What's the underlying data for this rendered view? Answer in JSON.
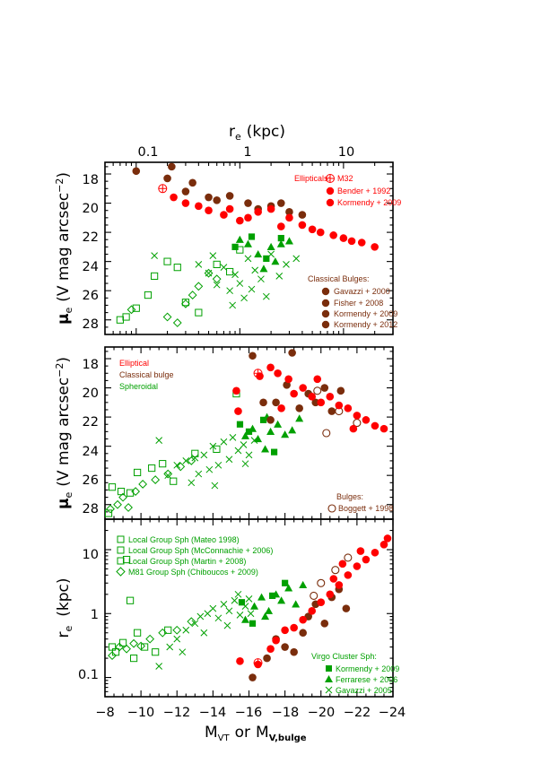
{
  "colors": {
    "elliptical": "#ff0000",
    "bulge": "#7a2d0c",
    "spheroidal": "#00a000",
    "axis": "#000000"
  },
  "axes": {
    "top_label_main": "r",
    "top_label_sub": "e",
    "top_label_unit": "(kpc)",
    "top_ticks": [
      "0.1",
      "1",
      "10"
    ],
    "mu_label_main": "μ",
    "mu_label_sub": "e",
    "mu_label_unit": "(V mag arcsec",
    "mu_label_exp": "−2",
    "mu_label_close": ")",
    "mu_ticks": [
      "18",
      "20",
      "22",
      "24",
      "26",
      "28"
    ],
    "re_label_main": "r",
    "re_label_sub": "e",
    "re_label_unit": "(kpc)",
    "re_ticks": [
      "10",
      "1",
      "0.1"
    ],
    "x_ticks": [
      "−8",
      "−10",
      "−12",
      "−14",
      "−16",
      "−18",
      "−20",
      "−22",
      "−24"
    ],
    "x_label_m1": "M",
    "x_label_s1": "VT",
    "x_label_or": "or",
    "x_label_m2": "M",
    "x_label_s2": "V,bulge"
  },
  "legends": {
    "p1_ellipticals_title": "Ellipticals:",
    "p1_m32": "M32",
    "p1_bender": "Bender + 1992",
    "p1_kormendy": "Kormendy + 2009",
    "p1_bulges_title": "Classical Bulges:",
    "p1_gavazzi": "Gavazzi + 2000",
    "p1_fisher": "Fisher + 2008",
    "p1_k2009": "Kormendy + 2009",
    "p1_k2012": "Kormendy + 2012",
    "p2_elliptical": "Elliptical",
    "p2_classical": "Classical bulge",
    "p2_spheroidal": "Spheroidal",
    "p2_bulges_title": "Bulges:",
    "p2_boggett": "Boggett + 1998",
    "p3_mateo": "Local Group Sph (Mateo 1998)",
    "p3_mcconnachie": "Local Group Sph (McConnachie + 2006)",
    "p3_martin": "Local Group Sph (Martin + 2008)",
    "p3_m81": "M81  Group Sph (Chiboucos + 2009)",
    "p3_virgo_title": "Virgo Cluster Sph:",
    "p3_kormendy": "Kormendy + 2009",
    "p3_ferrarese": "Ferrarese + 2006",
    "p3_gavazzi": "Gavazzi + 2005"
  },
  "chart_data": [
    {
      "type": "scatter",
      "panel": "top",
      "x_axis": "r_e (kpc)",
      "x_scale": "log",
      "xlim": [
        0.05,
        30
      ],
      "y_axis": "mu_e (V mag arcsec^-2)",
      "ylim": [
        29,
        17.2
      ],
      "y_inverted": true,
      "groups": {
        "elliptical": [
          [
            0.23,
            19.6
          ],
          [
            0.3,
            20.0
          ],
          [
            0.4,
            20.2
          ],
          [
            0.5,
            20.5
          ],
          [
            0.7,
            20.8
          ],
          [
            0.8,
            20.4
          ],
          [
            1.0,
            21.2
          ],
          [
            1.2,
            21.0
          ],
          [
            1.5,
            20.6
          ],
          [
            2,
            20.4
          ],
          [
            2.5,
            21.6
          ],
          [
            3,
            21.0
          ],
          [
            4,
            21.5
          ],
          [
            5,
            21.8
          ],
          [
            6,
            22.0
          ],
          [
            8,
            22.2
          ],
          [
            10,
            22.4
          ],
          [
            12,
            22.6
          ],
          [
            15,
            22.7
          ],
          [
            20,
            23.0
          ]
        ],
        "elliptical_m32": [
          [
            0.18,
            19.0
          ]
        ],
        "bulge": [
          [
            0.1,
            17.8
          ],
          [
            0.22,
            17.5
          ],
          [
            0.2,
            18.3
          ],
          [
            0.35,
            18.6
          ],
          [
            0.3,
            19.2
          ],
          [
            0.5,
            19.6
          ],
          [
            0.6,
            19.8
          ],
          [
            0.8,
            19.5
          ],
          [
            1.2,
            20.0
          ],
          [
            1.5,
            20.4
          ],
          [
            2,
            20.2
          ],
          [
            3,
            20.6
          ],
          [
            4,
            20.8
          ],
          [
            2.5,
            20.0
          ]
        ],
        "spheroidal_squares": [
          [
            0.08,
            27.8
          ],
          [
            0.1,
            27.2
          ],
          [
            0.13,
            26.3
          ],
          [
            0.15,
            25.0
          ],
          [
            0.2,
            24.0
          ],
          [
            0.25,
            24.4
          ],
          [
            0.3,
            26.8
          ],
          [
            0.4,
            27.5
          ],
          [
            0.6,
            24.2
          ],
          [
            0.8,
            24.7
          ],
          [
            1.0,
            23.2
          ],
          [
            0.07,
            28.0
          ]
        ],
        "spheroidal_diamonds": [
          [
            0.09,
            27.3
          ],
          [
            0.2,
            27.8
          ],
          [
            0.25,
            28.2
          ],
          [
            0.3,
            26.9
          ],
          [
            0.35,
            26.3
          ],
          [
            0.4,
            25.7
          ],
          [
            0.5,
            24.8
          ],
          [
            0.6,
            25.2
          ]
        ],
        "spheroidal_triangles": [
          [
            1.0,
            22.5
          ],
          [
            1.2,
            22.8
          ],
          [
            1.5,
            23.5
          ],
          [
            2,
            23.0
          ],
          [
            2.5,
            22.8
          ],
          [
            3,
            22.6
          ],
          [
            1.7,
            24.5
          ],
          [
            2.2,
            24.0
          ]
        ],
        "spheroidal_filled_squares": [
          [
            0.9,
            23.0
          ],
          [
            1.3,
            22.3
          ],
          [
            1.8,
            23.8
          ],
          [
            2.5,
            22.4
          ]
        ],
        "spheroidal_crosses": [
          [
            0.15,
            23.6
          ],
          [
            0.4,
            24.2
          ],
          [
            0.5,
            24.8
          ],
          [
            0.6,
            25.6
          ],
          [
            0.7,
            24.4
          ],
          [
            0.8,
            26.0
          ],
          [
            0.9,
            24.9
          ],
          [
            1.0,
            25.5
          ],
          [
            1.2,
            23.8
          ],
          [
            1.4,
            24.6
          ],
          [
            1.6,
            25.2
          ],
          [
            1.8,
            26.4
          ],
          [
            2.0,
            23.5
          ],
          [
            2.4,
            25.0
          ],
          [
            2.8,
            24.2
          ],
          [
            3.5,
            23.8
          ],
          [
            0.85,
            27.0
          ],
          [
            1.1,
            26.5
          ],
          [
            1.3,
            25.9
          ],
          [
            0.55,
            23.6
          ]
        ]
      }
    },
    {
      "type": "scatter",
      "panel": "middle",
      "x_axis": "M_VT or M_V,bulge",
      "xlim": [
        -8,
        -24
      ],
      "y_axis": "mu_e (V mag arcsec^-2)",
      "ylim": [
        29,
        17.2
      ],
      "y_inverted": true,
      "groups": {
        "elliptical": [
          [
            -15.3,
            20.2
          ],
          [
            -15.4,
            21.6
          ],
          [
            -16.6,
            19.2
          ],
          [
            -17.2,
            18.6
          ],
          [
            -17.6,
            19.0
          ],
          [
            -18.2,
            19.4
          ],
          [
            -18.5,
            20.4
          ],
          [
            -19.0,
            20.0
          ],
          [
            -19.5,
            20.6
          ],
          [
            -20.0,
            21.0
          ],
          [
            -20.5,
            20.6
          ],
          [
            -21.0,
            21.2
          ],
          [
            -21.5,
            21.4
          ],
          [
            -22.0,
            21.9
          ],
          [
            -22.5,
            22.2
          ],
          [
            -23.0,
            22.6
          ],
          [
            -23.5,
            22.8
          ],
          [
            -17.8,
            21.4
          ],
          [
            -19.8,
            19.4
          ],
          [
            -21.8,
            22.8
          ]
        ],
        "elliptical_m32": [
          [
            -16.5,
            19.0
          ]
        ],
        "bulge": [
          [
            -16.2,
            17.8
          ],
          [
            -16.8,
            21.0
          ],
          [
            -17.2,
            22.2
          ],
          [
            -17.5,
            21.0
          ],
          [
            -18.1,
            19.8
          ],
          [
            -18.4,
            17.6
          ],
          [
            -18.8,
            21.4
          ],
          [
            -19.3,
            20.4
          ],
          [
            -19.7,
            21.0
          ],
          [
            -20.2,
            20.0
          ],
          [
            -20.6,
            21.6
          ],
          [
            -21.1,
            20.2
          ]
        ],
        "bulge_open": [
          [
            -19.8,
            20.2
          ],
          [
            -20.3,
            23.1
          ],
          [
            -21.0,
            21.6
          ],
          [
            -22.0,
            22.4
          ]
        ],
        "spheroidal_squares": [
          [
            -8.4,
            26.8
          ],
          [
            -8.9,
            27.1
          ],
          [
            -9.4,
            27.2
          ],
          [
            -9.8,
            25.8
          ],
          [
            -10.6,
            25.5
          ],
          [
            -11.2,
            25.2
          ],
          [
            -11.8,
            26.4
          ],
          [
            -13.0,
            24.5
          ],
          [
            -14.2,
            24.2
          ],
          [
            -15.3,
            20.4
          ],
          [
            -8.2,
            28.6
          ]
        ],
        "spheroidal_diamonds": [
          [
            -8.3,
            28.3
          ],
          [
            -8.7,
            28.0
          ],
          [
            -9.0,
            27.5
          ],
          [
            -9.3,
            28.2
          ],
          [
            -9.7,
            27.1
          ],
          [
            -10.1,
            26.6
          ],
          [
            -10.8,
            26.3
          ],
          [
            -11.5,
            25.9
          ],
          [
            -12.2,
            25.4
          ],
          [
            -12.8,
            25.0
          ]
        ],
        "spheroidal_triangles": [
          [
            -15.8,
            23.3
          ],
          [
            -16.2,
            22.8
          ],
          [
            -16.5,
            23.5
          ],
          [
            -17.0,
            22.0
          ],
          [
            -17.2,
            23.0
          ],
          [
            -17.6,
            22.5
          ],
          [
            -18.0,
            23.2
          ],
          [
            -18.4,
            22.9
          ],
          [
            -18.8,
            22.1
          ],
          [
            -16.9,
            24.2
          ]
        ],
        "spheroidal_filled_squares": [
          [
            -15.5,
            22.5
          ],
          [
            -16.0,
            23.0
          ],
          [
            -16.8,
            22.2
          ],
          [
            -17.4,
            24.4
          ]
        ],
        "spheroidal_crosses": [
          [
            -11.0,
            23.6
          ],
          [
            -11.5,
            26.0
          ],
          [
            -12.0,
            25.3
          ],
          [
            -12.5,
            25.0
          ],
          [
            -13.0,
            24.8
          ],
          [
            -13.5,
            24.6
          ],
          [
            -13.8,
            25.6
          ],
          [
            -14.0,
            24.0
          ],
          [
            -14.3,
            25.3
          ],
          [
            -14.6,
            23.7
          ],
          [
            -14.9,
            24.9
          ],
          [
            -15.1,
            23.4
          ],
          [
            -15.4,
            24.3
          ],
          [
            -15.7,
            23.9
          ],
          [
            -16.0,
            24.6
          ],
          [
            -16.3,
            23.6
          ],
          [
            -12.8,
            26.5
          ],
          [
            -13.2,
            25.9
          ],
          [
            -14.1,
            26.7
          ],
          [
            -15.8,
            25.2
          ]
        ]
      }
    },
    {
      "type": "scatter",
      "panel": "bottom",
      "x_axis": "M_VT or M_V,bulge",
      "xlim": [
        -8,
        -24
      ],
      "y_axis": "r_e (kpc)",
      "y_scale": "log",
      "ylim": [
        0.05,
        30
      ],
      "groups": {
        "elliptical": [
          [
            -15.5,
            0.18
          ],
          [
            -16.5,
            0.16
          ],
          [
            -17.2,
            0.28
          ],
          [
            -17.5,
            0.38
          ],
          [
            -18.0,
            0.55
          ],
          [
            -18.5,
            0.6
          ],
          [
            -19.0,
            0.8
          ],
          [
            -19.5,
            1.1
          ],
          [
            -20.0,
            1.5
          ],
          [
            -20.5,
            2.0
          ],
          [
            -21.0,
            2.8
          ],
          [
            -21.5,
            4.0
          ],
          [
            -22.0,
            5.5
          ],
          [
            -22.5,
            7.0
          ],
          [
            -23.0,
            9.0
          ],
          [
            -23.5,
            12.0
          ],
          [
            -23.7,
            15.0
          ],
          [
            -21.2,
            6.0
          ],
          [
            -22.2,
            9.5
          ],
          [
            -20.7,
            3.5
          ]
        ],
        "elliptical_m32": [
          [
            -16.5,
            0.17
          ]
        ],
        "bulge": [
          [
            -16.2,
            0.1
          ],
          [
            -17.0,
            0.2
          ],
          [
            -17.5,
            0.4
          ],
          [
            -18.0,
            0.3
          ],
          [
            -18.5,
            0.25
          ],
          [
            -19.0,
            0.5
          ],
          [
            -19.3,
            0.9
          ],
          [
            -19.7,
            1.4
          ],
          [
            -20.2,
            0.7
          ],
          [
            -20.6,
            1.8
          ],
          [
            -21.0,
            2.4
          ],
          [
            -21.4,
            1.2
          ]
        ],
        "bulge_open": [
          [
            -20.0,
            3.0
          ],
          [
            -21.5,
            7.5
          ],
          [
            -20.8,
            4.8
          ],
          [
            -19.6,
            1.9
          ]
        ],
        "spheroidal_squares": [
          [
            -8.6,
            0.25
          ],
          [
            -9.0,
            0.35
          ],
          [
            -9.4,
            1.6
          ],
          [
            -9.8,
            0.5
          ],
          [
            -10.2,
            0.3
          ],
          [
            -10.8,
            0.25
          ],
          [
            -11.5,
            0.55
          ],
          [
            -9.2,
            7.0
          ],
          [
            -8.4,
            0.3
          ],
          [
            -9.6,
            0.2
          ]
        ],
        "spheroidal_diamonds": [
          [
            -8.4,
            0.22
          ],
          [
            -8.8,
            0.3
          ],
          [
            -9.2,
            0.28
          ],
          [
            -9.6,
            0.34
          ],
          [
            -10.0,
            0.31
          ],
          [
            -10.5,
            0.4
          ],
          [
            -11.2,
            0.5
          ],
          [
            -12.0,
            0.55
          ],
          [
            -12.8,
            0.75
          ]
        ],
        "spheroidal_triangles": [
          [
            -15.8,
            0.8
          ],
          [
            -16.3,
            1.3
          ],
          [
            -16.7,
            1.8
          ],
          [
            -17.1,
            1.1
          ],
          [
            -17.5,
            2.0
          ],
          [
            -17.8,
            1.6
          ],
          [
            -18.2,
            2.5
          ],
          [
            -18.6,
            1.4
          ],
          [
            -19.0,
            2.8
          ],
          [
            -16.9,
            0.9
          ]
        ],
        "spheroidal_filled_squares": [
          [
            -15.6,
            1.5
          ],
          [
            -16.2,
            0.7
          ],
          [
            -17.3,
            1.9
          ],
          [
            -18.0,
            3.0
          ]
        ],
        "spheroidal_crosses": [
          [
            -11.0,
            0.15
          ],
          [
            -11.6,
            0.3
          ],
          [
            -12.0,
            0.4
          ],
          [
            -12.5,
            0.55
          ],
          [
            -13.0,
            0.7
          ],
          [
            -13.3,
            0.9
          ],
          [
            -13.7,
            1.0
          ],
          [
            -14.0,
            1.2
          ],
          [
            -14.3,
            0.85
          ],
          [
            -14.6,
            1.4
          ],
          [
            -14.9,
            1.1
          ],
          [
            -15.2,
            1.6
          ],
          [
            -15.5,
            0.95
          ],
          [
            -15.8,
            1.3
          ],
          [
            -16.1,
            1.0
          ],
          [
            -12.3,
            0.25
          ],
          [
            -13.5,
            0.5
          ],
          [
            -14.8,
            0.65
          ],
          [
            -15.4,
            2.0
          ],
          [
            -16.0,
            1.7
          ]
        ]
      }
    }
  ]
}
